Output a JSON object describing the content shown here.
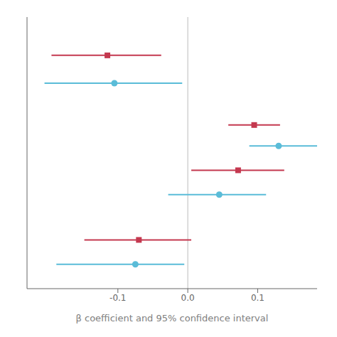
{
  "chart_data": {
    "type": "scatter",
    "xlabel": "β coefficient and 95% confidence interval",
    "xlim": [
      -0.23,
      0.185
    ],
    "xticks": [
      -0.1,
      {
        "value": 0,
        "label": "0.0"
      },
      0.1
    ],
    "ylim": [
      0.8,
      8.6
    ],
    "tick_labels": "x",
    "vline": {
      "x": 0.0,
      "color": "#bbbbbb"
    },
    "series": [
      {
        "color": "#c4384f",
        "marker": "square",
        "x": [
          -0.115,
          0.095,
          0.072,
          -0.07
        ],
        "y": [
          7.5,
          5.5,
          4.2,
          2.2
        ],
        "ci_low": [
          -0.195,
          0.058,
          0.005,
          -0.148
        ],
        "ci_high": [
          -0.038,
          0.132,
          0.138,
          0.005
        ]
      },
      {
        "color": "#5abcd8",
        "marker": "circle",
        "x": [
          -0.105,
          0.13,
          0.045,
          -0.075
        ],
        "y": [
          6.7,
          4.9,
          3.5,
          1.5
        ],
        "ci_low": [
          -0.205,
          0.088,
          -0.028,
          -0.188
        ],
        "ci_high": [
          -0.008,
          0.185,
          0.112,
          -0.005
        ]
      }
    ]
  }
}
